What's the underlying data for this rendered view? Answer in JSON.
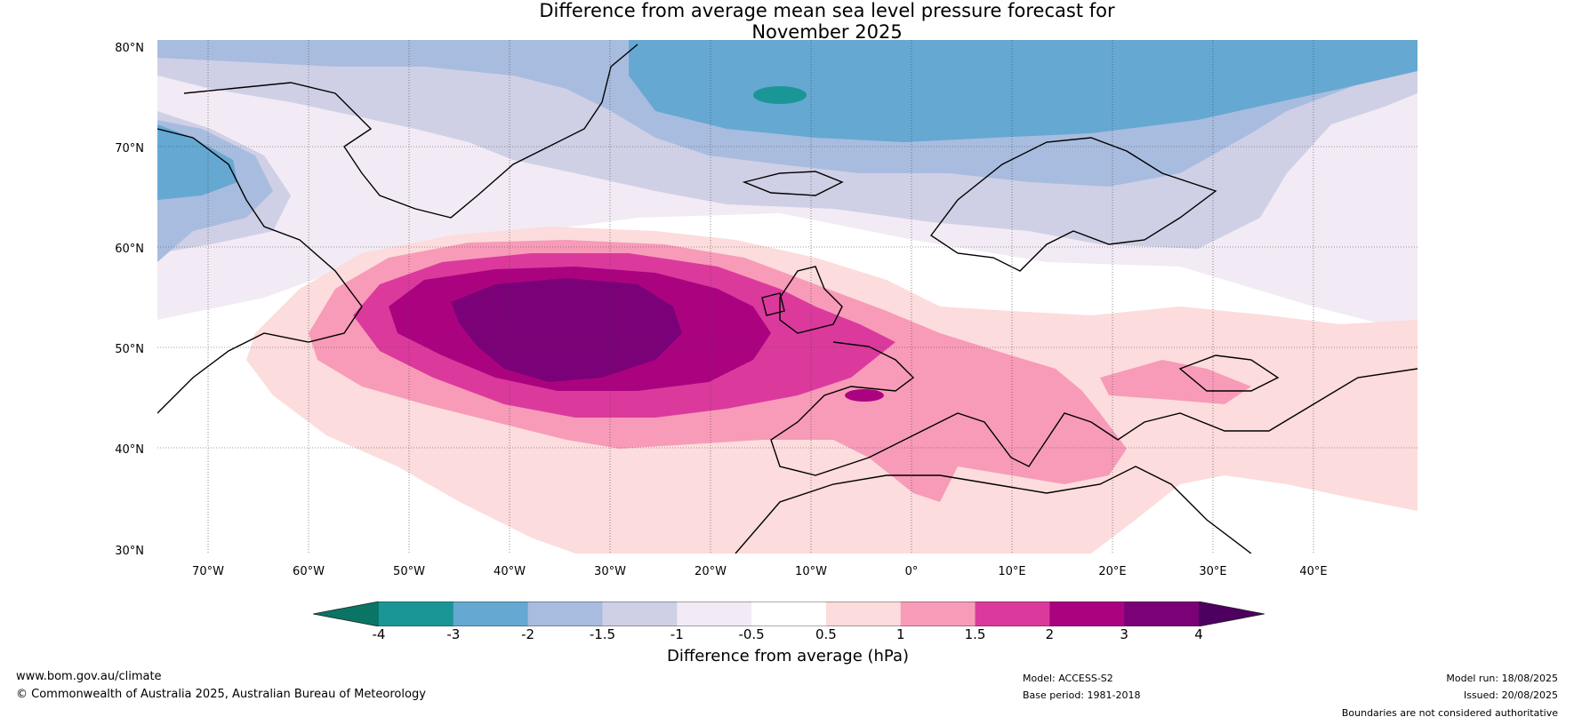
{
  "title_line1": "Difference from average mean sea level pressure forecast for",
  "title_line2": "November 2025",
  "lat_labels": [
    "80°N",
    "70°N",
    "60°N",
    "50°N",
    "40°N",
    "30°N"
  ],
  "lon_labels": [
    "70°W",
    "60°W",
    "50°W",
    "40°W",
    "30°W",
    "20°W",
    "10°W",
    "0°",
    "10°E",
    "20°E",
    "30°E",
    "40°E"
  ],
  "colorbar": {
    "ticks": [
      "-4",
      "-3",
      "-2",
      "-1.5",
      "-1",
      "-0.5",
      "0.5",
      "1",
      "1.5",
      "2",
      "3",
      "4"
    ],
    "colors": [
      "#1b9696",
      "#65a8d2",
      "#a8bcdf",
      "#cfd0e5",
      "#f2eaf4",
      "#ffffff",
      "#fcdcdc",
      "#f79bb9",
      "#db3a9c",
      "#ab0380",
      "#7a0177"
    ],
    "under_color": "#0a7565",
    "over_color": "#4d005f",
    "title": "Difference from average (hPa)"
  },
  "footer": {
    "website": "www.bom.gov.au/climate",
    "copyright": "© Commonwealth of Australia 2025, Australian Bureau of Meteorology",
    "model": "Model: ACCESS-S2",
    "base_period": "Base period: 1981-2018",
    "model_run": "Model run: 18/08/2025",
    "issued": "Issued: 20/08/2025",
    "disclaimer": "Boundaries are not considered authoritative"
  }
}
